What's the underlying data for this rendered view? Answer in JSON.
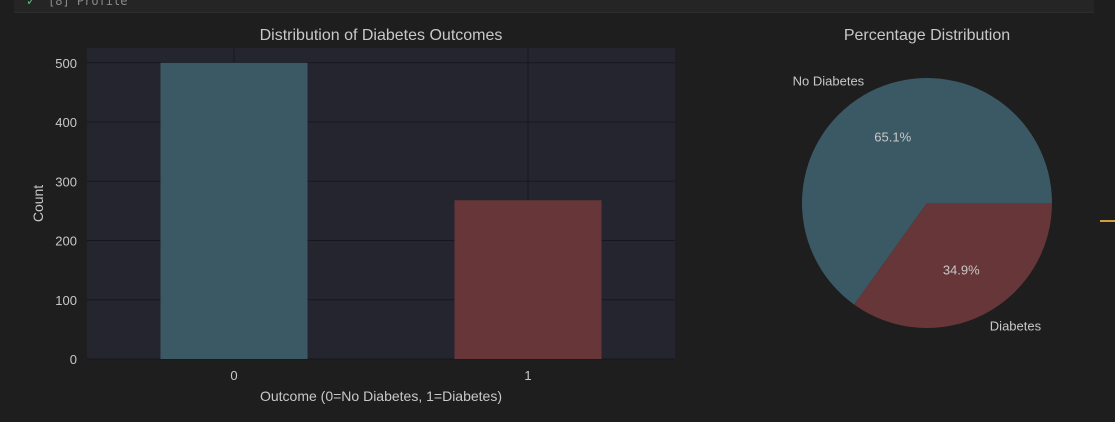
{
  "cell": {
    "status_icon": "check-icon",
    "label": "[8]   Profile"
  },
  "colors": {
    "background": "#1e1e1e",
    "plot_background": "#252530",
    "grid": "#16161c",
    "text": "#c8c8c8",
    "no_diabetes": "#3b5964",
    "diabetes": "#663638"
  },
  "chart_data": [
    {
      "type": "bar",
      "title": "Distribution of Diabetes Outcomes",
      "xlabel": "Outcome (0=No Diabetes, 1=Diabetes)",
      "ylabel": "Count",
      "categories": [
        "0",
        "1"
      ],
      "values": [
        500,
        268
      ],
      "ylim": [
        0,
        525
      ],
      "yticks": [
        0,
        100,
        200,
        300,
        400,
        500
      ],
      "grid": true
    },
    {
      "type": "pie",
      "title": "Percentage Distribution",
      "labels": [
        "No Diabetes",
        "Diabetes"
      ],
      "values": [
        65.1,
        34.9
      ],
      "value_labels": [
        "65.1%",
        "34.9%"
      ]
    }
  ]
}
